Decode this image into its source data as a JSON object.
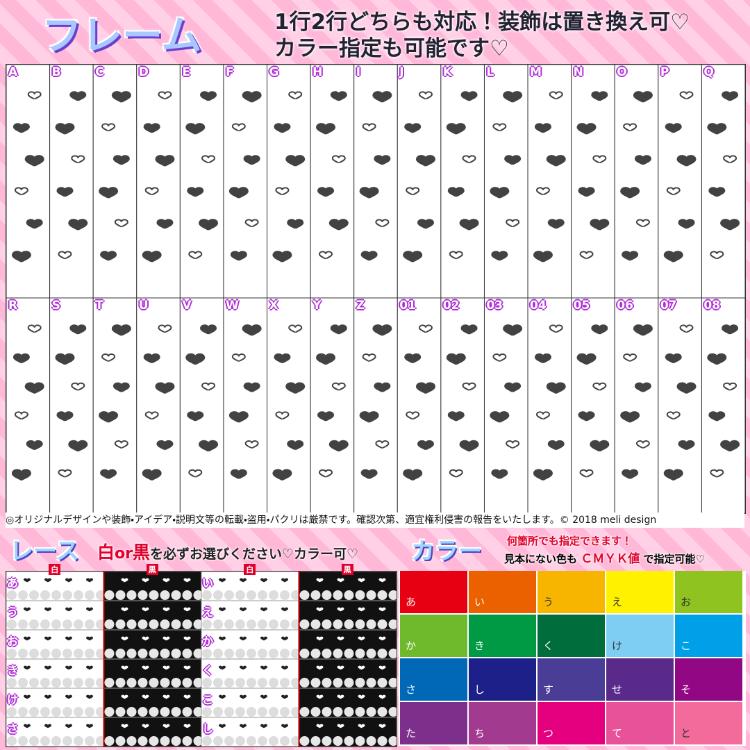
{
  "header": {
    "title": "フレーム",
    "tagline": [
      "1行2行どちらも対応！装飾は置き換え可♡",
      "カラー指定も可能です♡"
    ]
  },
  "frames": {
    "rows": [
      [
        "A",
        "B",
        "C",
        "D",
        "E",
        "F",
        "G",
        "H",
        "I",
        "J",
        "K",
        "L",
        "M",
        "N",
        "O",
        "P",
        "Q"
      ],
      [
        "R",
        "S",
        "T",
        "U",
        "V",
        "W",
        "X",
        "Y",
        "Z",
        "01",
        "02",
        "03",
        "04",
        "05",
        "06",
        "07",
        "08"
      ]
    ]
  },
  "notice": "◎オリジナルデザインや装飾・アイデア・説明文等の転載・盗用・パクリは厳禁です。確認次第、適宜権利侵害の報告をいたします。© 2018 meli design",
  "lace": {
    "title": "レース",
    "instruction": [
      "白",
      "or",
      "黒",
      "を必ずお選びください♡カラー可♡"
    ],
    "tags": [
      "白",
      "黒",
      "白",
      "黒"
    ],
    "rows": [
      [
        "あ",
        "い"
      ],
      [
        "う",
        "え"
      ],
      [
        "お",
        "か"
      ],
      [
        "き",
        "く"
      ],
      [
        "け",
        "こ"
      ],
      [
        "さ",
        "し"
      ]
    ]
  },
  "color": {
    "title": "カラー",
    "note": [
      "何箇所でも指定できます！",
      "見本にない色も",
      "ＣＭＹＫ値",
      "で指定可能♡"
    ],
    "swatches": [
      {
        "label": "あ",
        "color": "#e60012"
      },
      {
        "label": "い",
        "color": "#eb6100"
      },
      {
        "label": "う",
        "color": "#f8b500"
      },
      {
        "label": "え",
        "color": "#fff100"
      },
      {
        "label": "お",
        "color": "#8fc31f"
      },
      {
        "label": "か",
        "color": "#6fba2c"
      },
      {
        "label": "き",
        "color": "#009944"
      },
      {
        "label": "く",
        "color": "#006e3c"
      },
      {
        "label": "け",
        "color": "#7ecef4"
      },
      {
        "label": "こ",
        "color": "#00a0e9"
      },
      {
        "label": "さ",
        "color": "#0068b7"
      },
      {
        "label": "し",
        "color": "#1d2088"
      },
      {
        "label": "す",
        "color": "#4a3d96"
      },
      {
        "label": "せ",
        "color": "#5a2a8a"
      },
      {
        "label": "そ",
        "color": "#920783"
      },
      {
        "label": "た",
        "color": "#7d2f8c"
      },
      {
        "label": "ち",
        "color": "#a23b8f"
      },
      {
        "label": "つ",
        "color": "#e4007f"
      },
      {
        "label": "て",
        "color": "#e85298"
      },
      {
        "label": "と",
        "color": "#f26b9a"
      }
    ]
  }
}
